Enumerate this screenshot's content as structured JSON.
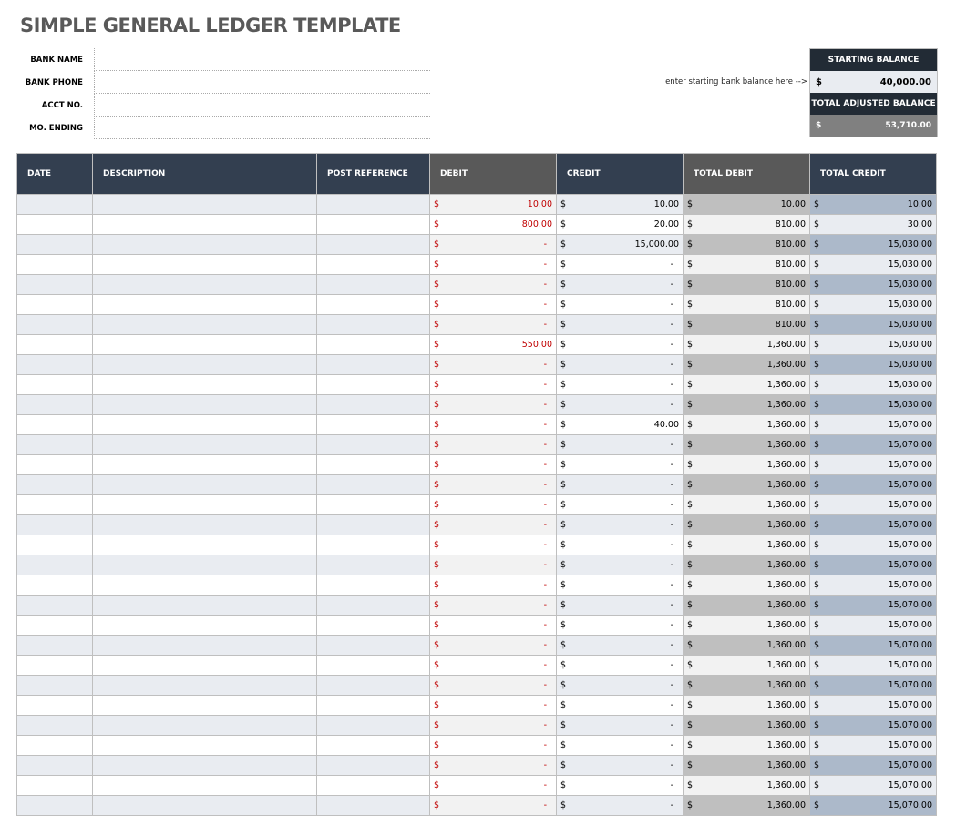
{
  "title": "SIMPLE GENERAL LEDGER TEMPLATE",
  "info": {
    "bank_name": "BANK NAME",
    "bank_phone": "BANK PHONE",
    "acct_no": "ACCT NO.",
    "mo_ending": "MO. ENDING"
  },
  "hint": "enter starting bank balance here -->",
  "balance": {
    "starting_label": "STARTING BALANCE",
    "currency": "$",
    "starting_value": "40,000.00",
    "adjusted_label": "TOTAL ADJUSTED BALANCE",
    "adjusted_value": "53,710.00"
  },
  "columns": [
    "DATE",
    "DESCRIPTION",
    "POST REFERENCE",
    "DEBIT",
    "CREDIT",
    "TOTAL DEBIT",
    "TOTAL CREDIT"
  ],
  "colors": {
    "header_navy": "#333f50",
    "header_gray": "#595959",
    "debit_red": "#c00000"
  },
  "rows": [
    [
      "10.00",
      "10.00",
      "10.00",
      "10.00"
    ],
    [
      "800.00",
      "20.00",
      "810.00",
      "30.00"
    ],
    [
      "-",
      "15,000.00",
      "810.00",
      "15,030.00"
    ],
    [
      "-",
      "-",
      "810.00",
      "15,030.00"
    ],
    [
      "-",
      "-",
      "810.00",
      "15,030.00"
    ],
    [
      "-",
      "-",
      "810.00",
      "15,030.00"
    ],
    [
      "-",
      "-",
      "810.00",
      "15,030.00"
    ],
    [
      "550.00",
      "-",
      "1,360.00",
      "15,030.00"
    ],
    [
      "-",
      "-",
      "1,360.00",
      "15,030.00"
    ],
    [
      "-",
      "-",
      "1,360.00",
      "15,030.00"
    ],
    [
      "-",
      "-",
      "1,360.00",
      "15,030.00"
    ],
    [
      "-",
      "40.00",
      "1,360.00",
      "15,070.00"
    ],
    [
      "-",
      "-",
      "1,360.00",
      "15,070.00"
    ],
    [
      "-",
      "-",
      "1,360.00",
      "15,070.00"
    ],
    [
      "-",
      "-",
      "1,360.00",
      "15,070.00"
    ],
    [
      "-",
      "-",
      "1,360.00",
      "15,070.00"
    ],
    [
      "-",
      "-",
      "1,360.00",
      "15,070.00"
    ],
    [
      "-",
      "-",
      "1,360.00",
      "15,070.00"
    ],
    [
      "-",
      "-",
      "1,360.00",
      "15,070.00"
    ],
    [
      "-",
      "-",
      "1,360.00",
      "15,070.00"
    ],
    [
      "-",
      "-",
      "1,360.00",
      "15,070.00"
    ],
    [
      "-",
      "-",
      "1,360.00",
      "15,070.00"
    ],
    [
      "-",
      "-",
      "1,360.00",
      "15,070.00"
    ],
    [
      "-",
      "-",
      "1,360.00",
      "15,070.00"
    ],
    [
      "-",
      "-",
      "1,360.00",
      "15,070.00"
    ],
    [
      "-",
      "-",
      "1,360.00",
      "15,070.00"
    ],
    [
      "-",
      "-",
      "1,360.00",
      "15,070.00"
    ],
    [
      "-",
      "-",
      "1,360.00",
      "15,070.00"
    ],
    [
      "-",
      "-",
      "1,360.00",
      "15,070.00"
    ],
    [
      "-",
      "-",
      "1,360.00",
      "15,070.00"
    ],
    [
      "-",
      "-",
      "1,360.00",
      "15,070.00"
    ]
  ]
}
